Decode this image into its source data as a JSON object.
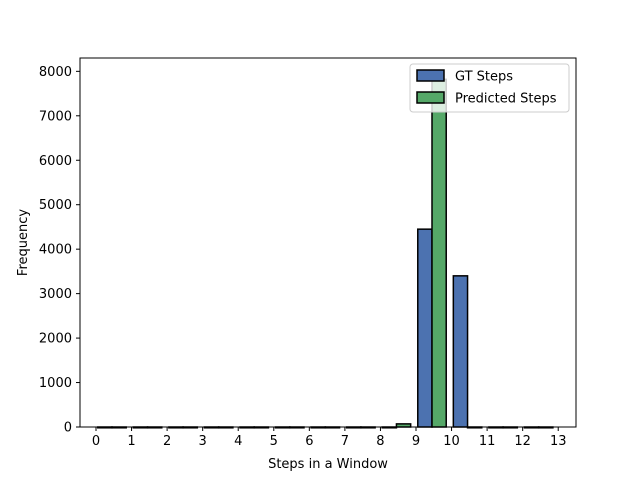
{
  "chart_data": {
    "type": "bar",
    "xlabel": "Steps in a Window",
    "ylabel": "Frequency",
    "categories": [
      "0",
      "1",
      "2",
      "3",
      "4",
      "5",
      "6",
      "7",
      "8",
      "9",
      "10",
      "11",
      "12",
      "13"
    ],
    "ylim": [
      0,
      8300
    ],
    "yticks": [
      0,
      1000,
      2000,
      3000,
      4000,
      5000,
      6000,
      7000,
      8000
    ],
    "xlim": [
      -0.45,
      13.5
    ],
    "legend": {
      "position": "top-right"
    },
    "series": [
      {
        "name": "GT Steps",
        "color": "#4c72b0",
        "x": [
          0.25,
          1.25,
          2.25,
          3.25,
          4.25,
          5.25,
          6.25,
          7.25,
          8.25,
          9.25,
          10.25,
          11.25,
          12.25
        ],
        "values": [
          0,
          0,
          0,
          0,
          0,
          0,
          0,
          0,
          0,
          4450,
          3400,
          0,
          0
        ]
      },
      {
        "name": "Predicted Steps",
        "color": "#55a868",
        "x": [
          0.65,
          1.65,
          2.65,
          3.65,
          4.65,
          5.65,
          6.65,
          7.65,
          8.65,
          9.65,
          10.65,
          11.65,
          12.65
        ],
        "values": [
          0,
          0,
          0,
          0,
          0,
          0,
          0,
          0,
          70,
          7820,
          0,
          0,
          0
        ]
      }
    ]
  }
}
